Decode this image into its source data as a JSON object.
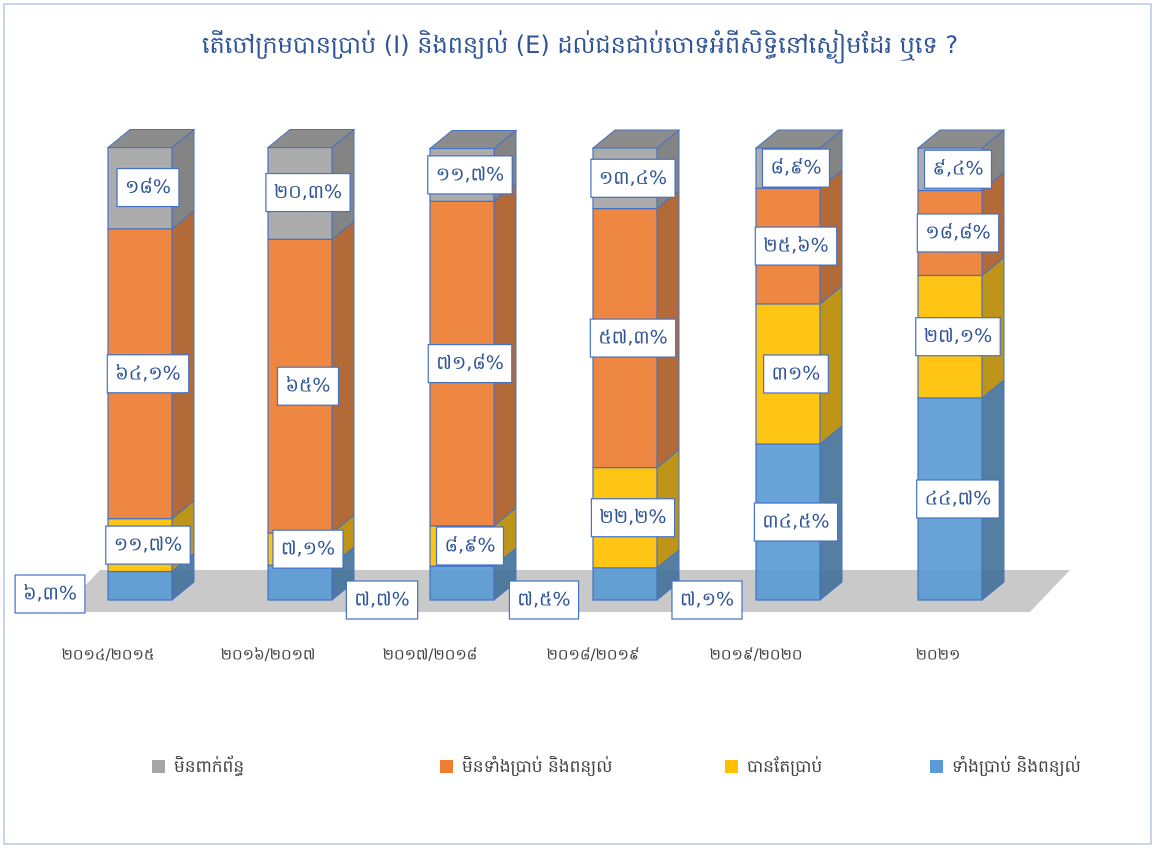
{
  "chart_data": {
    "type": "bar3d_stacked",
    "title": "តើចៅក្រមបានប្រាប់ (I) និងពន្យល់ (E) ដល់ជនជាប់ចោទអំពីសិទ្ធិនៅស្ងៀមដែរ ឬទេ ?",
    "categories": [
      "២០១៤/២០១៥",
      "២០១៦/២០១៧",
      "២០១៧/២០១៨",
      "២០១៨/២០១៩",
      "២០១៩/២០២០",
      "២០២១"
    ],
    "ylim": [
      0,
      100
    ],
    "legend": "bottom",
    "series": [
      {
        "name": "មិនពាក់ព័ន្ធ",
        "color": "#a5a5a5",
        "values": [
          18,
          20.3,
          11.7,
          13.4,
          8.9,
          9.4
        ],
        "value_labels": [
          "១៨%",
          "២០,៣%",
          "១១,៧%",
          "១៣,៤%",
          "៨,៩%",
          "៩,៤%"
        ]
      },
      {
        "name": "មិនទាំងប្រាប់ និងពន្យល់",
        "color": "#ed7d31",
        "values": [
          64.1,
          65,
          71.8,
          57.3,
          25.6,
          18.8
        ],
        "value_labels": [
          "៦៤,១%",
          "៦៥%",
          "៧១,៨%",
          "៥៧,៣%",
          "២៥,៦%",
          "១៨,៨%"
        ]
      },
      {
        "name": "បានតែប្រាប់",
        "color": "#ffc000",
        "values": [
          11.7,
          7.1,
          8.9,
          22.2,
          31,
          27.1
        ],
        "value_labels": [
          "១១,៧%",
          "៧,១%",
          "៨,៩%",
          "២២,២%",
          "៣១%",
          "២៧,១%"
        ]
      },
      {
        "name": "ទាំងប្រាប់ និងពន្យល់",
        "color": "#5b9bd5",
        "values": [
          6.3,
          7.7,
          7.5,
          7.1,
          34.5,
          44.7
        ],
        "value_labels": [
          "៦,៣%",
          "៧,៧%",
          "៧,៥%",
          "៧,១%",
          "៣៤,៥%",
          "៤៤,៧%"
        ]
      }
    ]
  }
}
